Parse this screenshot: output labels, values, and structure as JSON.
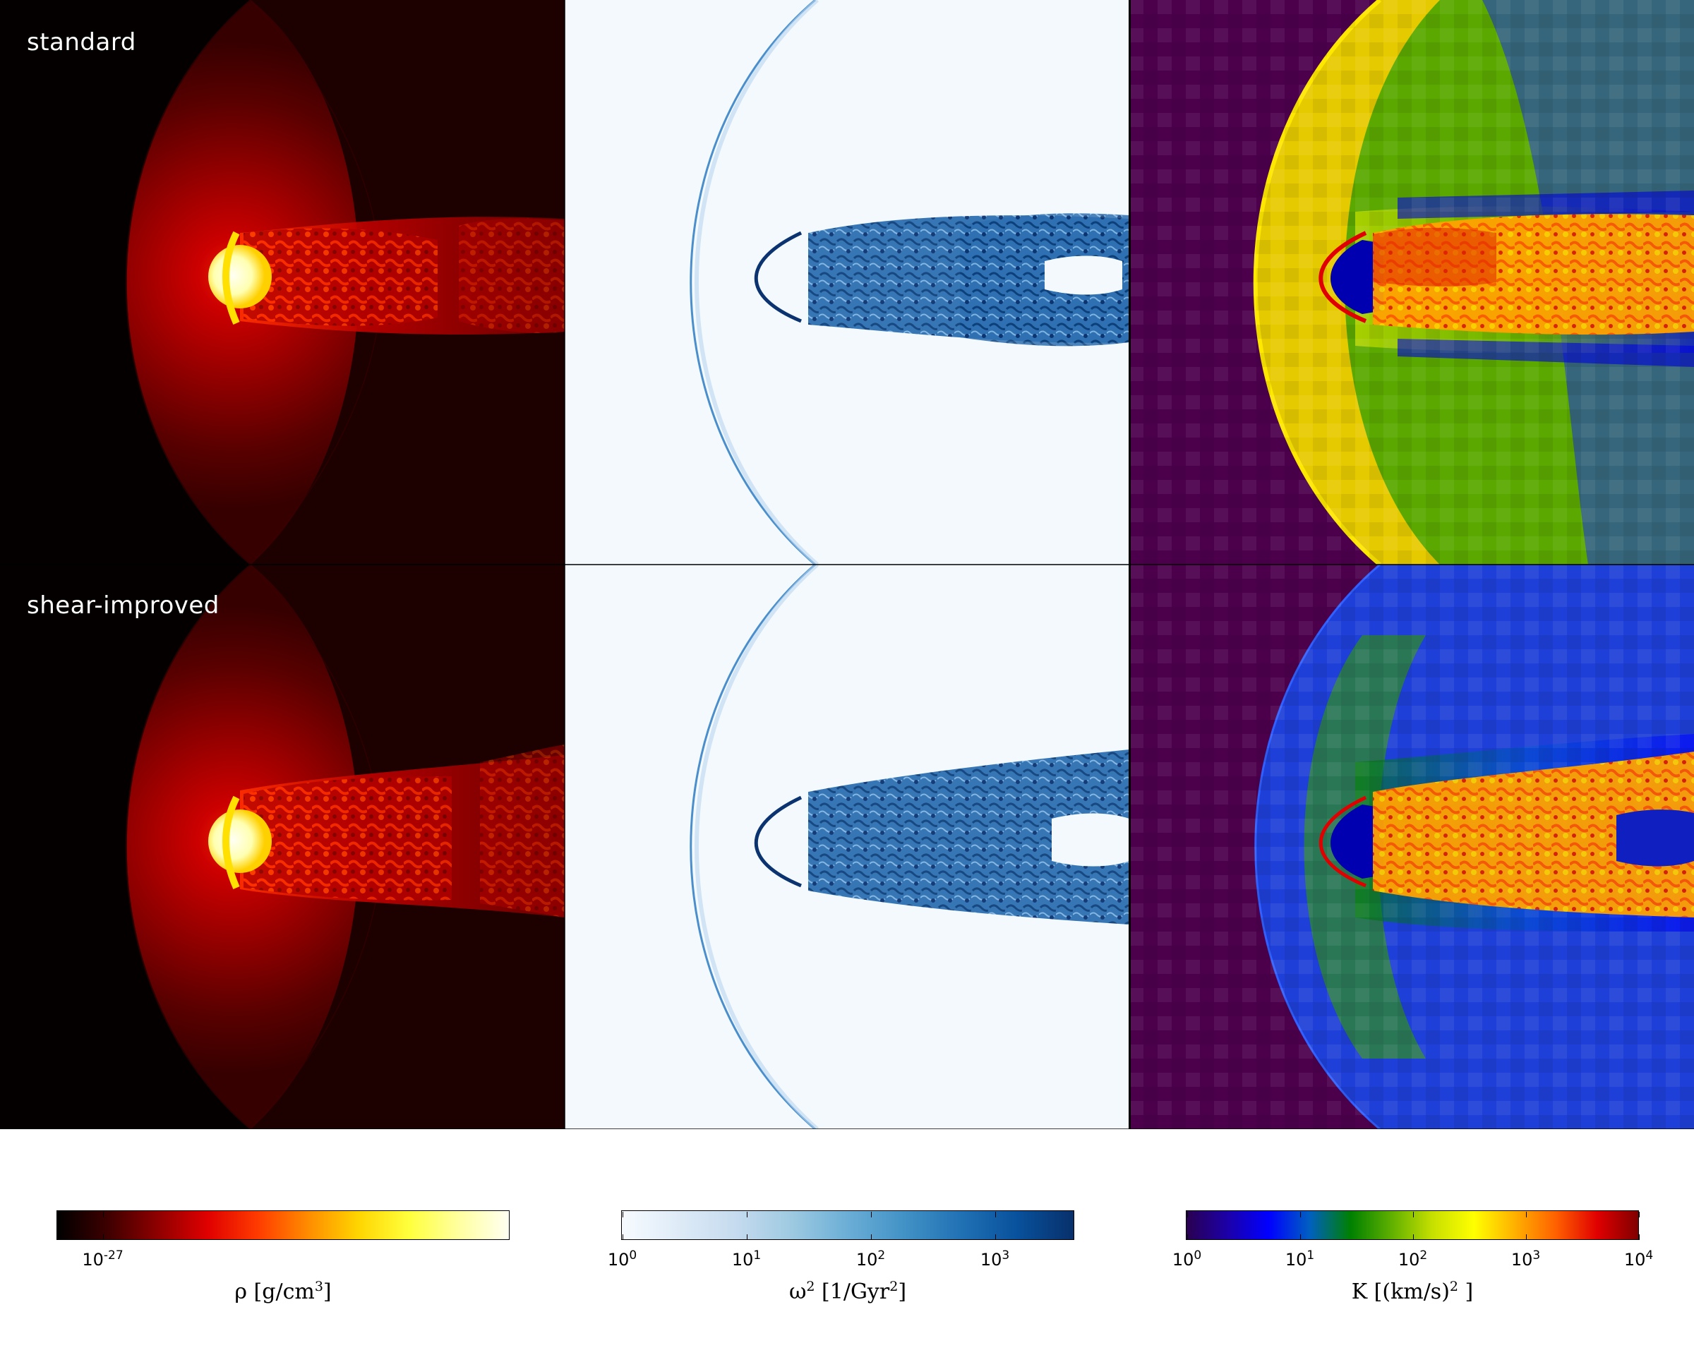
{
  "rows": [
    {
      "label": "standard"
    },
    {
      "label": "shear-improved"
    }
  ],
  "panels": {
    "density_colormap": "hot",
    "vorticity_colormap": "blues",
    "energy_colormap": "jet"
  },
  "colorbars": [
    {
      "name": "density",
      "colormap": [
        "#000000",
        "#3d0000",
        "#8e0000",
        "#e00000",
        "#ff3b00",
        "#ff8c00",
        "#ffd500",
        "#ffff3c",
        "#ffffa0",
        "#fffff2"
      ],
      "ticks": [
        {
          "base": "10",
          "exp": "-27",
          "pos": 0.1
        }
      ],
      "label_main": "ρ [g/cm",
      "label_exp": "3",
      "label_end": "]"
    },
    {
      "name": "vorticity",
      "colormap": [
        "#f7fbff",
        "#deebf7",
        "#c6dbef",
        "#9ecae1",
        "#6baed6",
        "#4292c6",
        "#2171b5",
        "#08519c",
        "#08306b"
      ],
      "ticks": [
        {
          "base": "10",
          "exp": "0",
          "pos": 0.0
        },
        {
          "base": "10",
          "exp": "1",
          "pos": 0.275
        },
        {
          "base": "10",
          "exp": "2",
          "pos": 0.55
        },
        {
          "base": "10",
          "exp": "3",
          "pos": 0.825
        }
      ],
      "label_main": "ω",
      "label_exp": "2",
      "label_end": " [1/Gyr",
      "label_exp2": "2",
      "label_end2": "]"
    },
    {
      "name": "energy",
      "colormap": [
        "#2a0050",
        "#1c00a8",
        "#0000ff",
        "#0060c0",
        "#008000",
        "#60b000",
        "#c8e000",
        "#ffff00",
        "#ffb000",
        "#ff6000",
        "#e00000",
        "#800000"
      ],
      "ticks": [
        {
          "base": "10",
          "exp": "0",
          "pos": 0.0
        },
        {
          "base": "10",
          "exp": "1",
          "pos": 0.25
        },
        {
          "base": "10",
          "exp": "2",
          "pos": 0.5
        },
        {
          "base": "10",
          "exp": "3",
          "pos": 0.75
        },
        {
          "base": "10",
          "exp": "4",
          "pos": 1.0
        }
      ],
      "label_main": "K [(km/s)",
      "label_exp": "2",
      "label_end": " ]"
    }
  ]
}
